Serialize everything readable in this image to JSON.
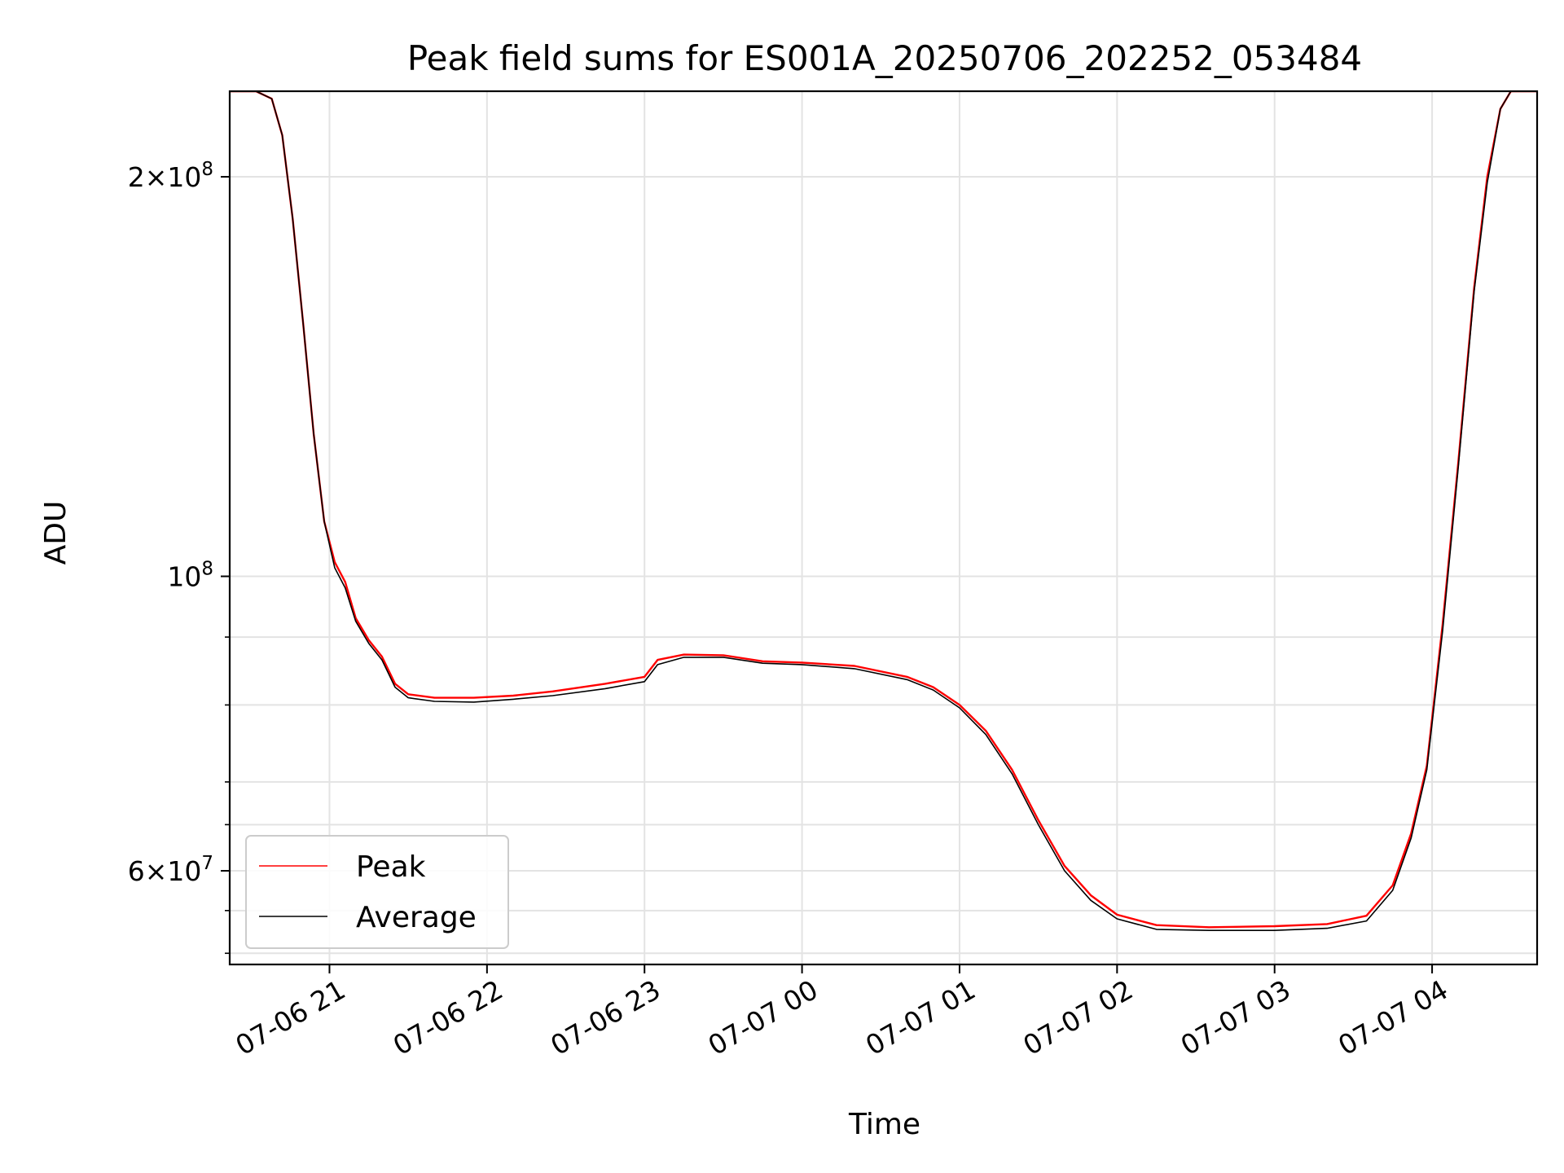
{
  "chart_data": {
    "type": "line",
    "title": "Peak field sums for ES001A_20250706_202252_053484",
    "xlabel": "Time",
    "ylabel": "ADU",
    "y_scale": "log",
    "grid": true,
    "legend_position": "lower-left",
    "xlim": [
      "2025-07-06 20:22",
      "2025-07-07 04:40"
    ],
    "ylim": [
      51000000,
      232000000
    ],
    "x_ticks": [
      {
        "t": "2025-07-06 21:00",
        "label": "07-06 21"
      },
      {
        "t": "2025-07-06 22:00",
        "label": "07-06 22"
      },
      {
        "t": "2025-07-06 23:00",
        "label": "07-06 23"
      },
      {
        "t": "2025-07-07 00:00",
        "label": "07-07 00"
      },
      {
        "t": "2025-07-07 01:00",
        "label": "07-07 01"
      },
      {
        "t": "2025-07-07 02:00",
        "label": "07-07 02"
      },
      {
        "t": "2025-07-07 03:00",
        "label": "07-07 03"
      },
      {
        "t": "2025-07-07 04:00",
        "label": "07-07 04"
      }
    ],
    "y_major_ticks": [
      {
        "v": 60000000,
        "mant": "6",
        "exp": "7"
      },
      {
        "v": 100000000,
        "mant": "",
        "exp": "8"
      },
      {
        "v": 200000000,
        "mant": "2",
        "exp": "8"
      }
    ],
    "y_minor_ticks": [
      52000000,
      56000000,
      60000000,
      65000000,
      70000000,
      80000000,
      90000000,
      100000000,
      200000000
    ],
    "series": [
      {
        "name": "Peak",
        "color": "#ff0000",
        "points": [
          [
            "2025-07-06 20:22",
            232000000
          ],
          [
            "2025-07-06 20:32",
            232000000
          ],
          [
            "2025-07-06 20:38",
            229000000
          ],
          [
            "2025-07-06 20:42",
            215000000
          ],
          [
            "2025-07-06 20:46",
            186000000
          ],
          [
            "2025-07-06 20:50",
            155000000
          ],
          [
            "2025-07-06 20:54",
            128000000
          ],
          [
            "2025-07-06 20:58",
            110000000
          ],
          [
            "2025-07-06 21:02",
            102500000
          ],
          [
            "2025-07-06 21:06",
            99000000
          ],
          [
            "2025-07-06 21:10",
            93000000
          ],
          [
            "2025-07-06 21:15",
            89500000
          ],
          [
            "2025-07-06 21:20",
            87000000
          ],
          [
            "2025-07-06 21:25",
            83000000
          ],
          [
            "2025-07-06 21:30",
            81500000
          ],
          [
            "2025-07-06 21:40",
            81000000
          ],
          [
            "2025-07-06 21:55",
            81000000
          ],
          [
            "2025-07-06 22:10",
            81300000
          ],
          [
            "2025-07-06 22:25",
            81900000
          ],
          [
            "2025-07-06 22:45",
            83000000
          ],
          [
            "2025-07-06 23:00",
            84000000
          ],
          [
            "2025-07-06 23:05",
            86500000
          ],
          [
            "2025-07-06 23:15",
            87300000
          ],
          [
            "2025-07-06 23:30",
            87200000
          ],
          [
            "2025-07-06 23:45",
            86300000
          ],
          [
            "2025-07-07 00:00",
            86100000
          ],
          [
            "2025-07-07 00:20",
            85600000
          ],
          [
            "2025-07-07 00:40",
            84000000
          ],
          [
            "2025-07-07 00:50",
            82500000
          ],
          [
            "2025-07-07 01:00",
            80000000
          ],
          [
            "2025-07-07 01:10",
            76500000
          ],
          [
            "2025-07-07 01:20",
            71500000
          ],
          [
            "2025-07-07 01:30",
            65500000
          ],
          [
            "2025-07-07 01:40",
            60500000
          ],
          [
            "2025-07-07 01:50",
            57500000
          ],
          [
            "2025-07-07 02:00",
            55600000
          ],
          [
            "2025-07-07 02:15",
            54600000
          ],
          [
            "2025-07-07 02:35",
            54400000
          ],
          [
            "2025-07-07 03:00",
            54500000
          ],
          [
            "2025-07-07 03:20",
            54700000
          ],
          [
            "2025-07-07 03:35",
            55500000
          ],
          [
            "2025-07-07 03:45",
            58500000
          ],
          [
            "2025-07-07 03:52",
            64000000
          ],
          [
            "2025-07-07 03:58",
            72000000
          ],
          [
            "2025-07-07 04:04",
            92000000
          ],
          [
            "2025-07-07 04:10",
            122000000
          ],
          [
            "2025-07-07 04:16",
            165000000
          ],
          [
            "2025-07-07 04:21",
            200000000
          ],
          [
            "2025-07-07 04:26",
            225000000
          ],
          [
            "2025-07-07 04:30",
            232000000
          ],
          [
            "2025-07-07 04:40",
            232000000
          ]
        ]
      },
      {
        "name": "Average",
        "color": "#000000",
        "points": [
          [
            "2025-07-06 20:22",
            232000000
          ],
          [
            "2025-07-06 20:32",
            232000000
          ],
          [
            "2025-07-06 20:38",
            229000000
          ],
          [
            "2025-07-06 20:42",
            215000000
          ],
          [
            "2025-07-06 20:46",
            186000000
          ],
          [
            "2025-07-06 20:50",
            155000000
          ],
          [
            "2025-07-06 20:54",
            128000000
          ],
          [
            "2025-07-06 20:58",
            110000000
          ],
          [
            "2025-07-06 21:02",
            101500000
          ],
          [
            "2025-07-06 21:06",
            98000000
          ],
          [
            "2025-07-06 21:10",
            92500000
          ],
          [
            "2025-07-06 21:15",
            89000000
          ],
          [
            "2025-07-06 21:20",
            86500000
          ],
          [
            "2025-07-06 21:25",
            82500000
          ],
          [
            "2025-07-06 21:30",
            81000000
          ],
          [
            "2025-07-06 21:40",
            80500000
          ],
          [
            "2025-07-06 21:55",
            80400000
          ],
          [
            "2025-07-06 22:10",
            80800000
          ],
          [
            "2025-07-06 22:25",
            81300000
          ],
          [
            "2025-07-06 22:45",
            82300000
          ],
          [
            "2025-07-06 23:00",
            83300000
          ],
          [
            "2025-07-06 23:05",
            85800000
          ],
          [
            "2025-07-06 23:15",
            86900000
          ],
          [
            "2025-07-06 23:30",
            86900000
          ],
          [
            "2025-07-06 23:45",
            86000000
          ],
          [
            "2025-07-07 00:00",
            85800000
          ],
          [
            "2025-07-07 00:20",
            85200000
          ],
          [
            "2025-07-07 00:40",
            83600000
          ],
          [
            "2025-07-07 00:50",
            82100000
          ],
          [
            "2025-07-07 01:00",
            79600000
          ],
          [
            "2025-07-07 01:10",
            76000000
          ],
          [
            "2025-07-07 01:20",
            71000000
          ],
          [
            "2025-07-07 01:30",
            65000000
          ],
          [
            "2025-07-07 01:40",
            60000000
          ],
          [
            "2025-07-07 01:50",
            57000000
          ],
          [
            "2025-07-07 02:00",
            55200000
          ],
          [
            "2025-07-07 02:15",
            54200000
          ],
          [
            "2025-07-07 02:35",
            54100000
          ],
          [
            "2025-07-07 03:00",
            54100000
          ],
          [
            "2025-07-07 03:20",
            54300000
          ],
          [
            "2025-07-07 03:35",
            55000000
          ],
          [
            "2025-07-07 03:45",
            58000000
          ],
          [
            "2025-07-07 03:52",
            63500000
          ],
          [
            "2025-07-07 03:58",
            71500000
          ],
          [
            "2025-07-07 04:04",
            91000000
          ],
          [
            "2025-07-07 04:10",
            121000000
          ],
          [
            "2025-07-07 04:16",
            164000000
          ],
          [
            "2025-07-07 04:21",
            198000000
          ],
          [
            "2025-07-07 04:26",
            225000000
          ],
          [
            "2025-07-07 04:30",
            232000000
          ],
          [
            "2025-07-07 04:40",
            232000000
          ]
        ]
      }
    ]
  }
}
